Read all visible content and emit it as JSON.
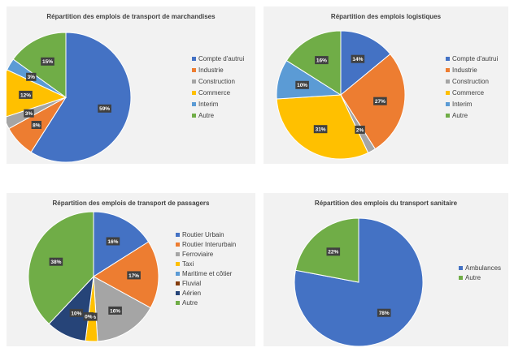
{
  "chart_data": [
    {
      "type": "pie",
      "title": "Répartition des emplois de transport de marchandises",
      "categories": [
        "Compte d'autrui",
        "Industrie",
        "Construction",
        "Commerce",
        "Interim",
        "Autre"
      ],
      "values": [
        59,
        8,
        3,
        12,
        3,
        15
      ],
      "labels": [
        "59%",
        "8%",
        "3%",
        "12%",
        "3%",
        "15%"
      ],
      "colors": [
        "#4472c4",
        "#ed7d31",
        "#a5a5a5",
        "#ffc000",
        "#5b9bd5",
        "#70ad47"
      ],
      "legend": "right"
    },
    {
      "type": "pie",
      "title": "Répartition des emplois logistiques",
      "categories": [
        "Compte d'autrui",
        "Industrie",
        "Construction",
        "Commerce",
        "Interim",
        "Autre"
      ],
      "values": [
        14,
        27,
        2,
        31,
        10,
        16
      ],
      "labels": [
        "14%",
        "27%",
        "2%",
        "31%",
        "10%",
        "16%"
      ],
      "colors": [
        "#4472c4",
        "#ed7d31",
        "#a5a5a5",
        "#ffc000",
        "#5b9bd5",
        "#70ad47"
      ],
      "legend": "right"
    },
    {
      "type": "pie",
      "title": "Répartition des emplois de transport de passagers",
      "categories": [
        "Routier Urbain",
        "Routier Interurbain",
        "Ferroviaire",
        "Taxi",
        "Maritime et côtier",
        "Fluvial",
        "Aérien",
        "Autre"
      ],
      "values": [
        16,
        17,
        16,
        3,
        0,
        0,
        10,
        38
      ],
      "labels": [
        "16%",
        "17%",
        "16%",
        "3%",
        "0%",
        "0%",
        "10%",
        "38%"
      ],
      "colors": [
        "#4472c4",
        "#ed7d31",
        "#a5a5a5",
        "#ffc000",
        "#5b9bd5",
        "#843c0c",
        "#264478",
        "#70ad47"
      ],
      "legend": "right"
    },
    {
      "type": "pie",
      "title": "Répartition des emplois du transport sanitaire",
      "categories": [
        "Ambulances",
        "Autre"
      ],
      "values": [
        78,
        22
      ],
      "labels": [
        "78%",
        "22%"
      ],
      "colors": [
        "#4472c4",
        "#70ad47"
      ],
      "legend": "right"
    }
  ]
}
